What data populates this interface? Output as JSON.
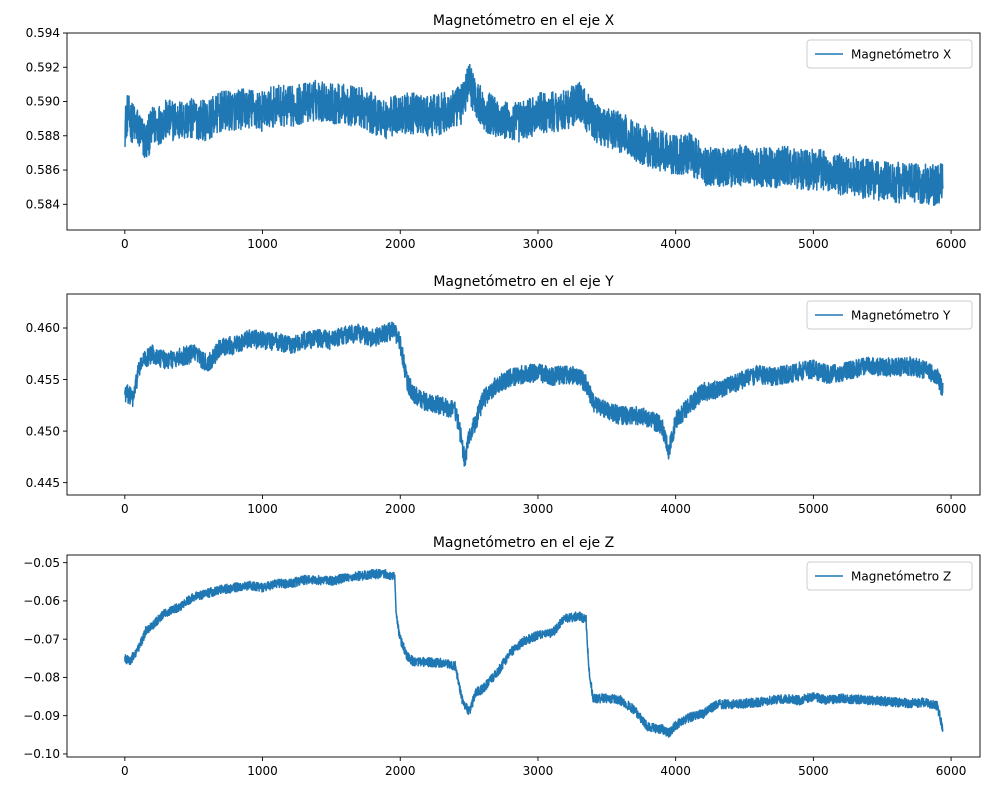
{
  "chart_data": [
    {
      "type": "line",
      "title": "Magnetómetro en el eje X",
      "xlabel": "",
      "ylabel": "",
      "xlim": [
        -420,
        6210
      ],
      "ylim": [
        0.5825,
        0.594
      ],
      "xticks": [
        0,
        1000,
        2000,
        3000,
        4000,
        5000,
        6000
      ],
      "xtick_labels": [
        "0",
        "1000",
        "2000",
        "3000",
        "4000",
        "5000",
        "6000"
      ],
      "yticks": [
        0.584,
        0.586,
        0.588,
        0.59,
        0.592,
        0.594
      ],
      "ytick_labels": [
        "0.584",
        "0.586",
        "0.588",
        "0.590",
        "0.592",
        "0.594"
      ],
      "legend_position": "upper right",
      "grid": false,
      "series": [
        {
          "name": "Magnetómetro X",
          "color": "#1f77b4",
          "noise": 0.0012,
          "x": [
            0,
            20,
            50,
            100,
            150,
            200,
            300,
            400,
            500,
            600,
            700,
            800,
            900,
            1000,
            1100,
            1200,
            1300,
            1400,
            1500,
            1600,
            1700,
            1800,
            1900,
            2000,
            2100,
            2200,
            2300,
            2400,
            2450,
            2500,
            2550,
            2600,
            2700,
            2800,
            2900,
            3000,
            3100,
            3200,
            3300,
            3400,
            3500,
            3600,
            3700,
            3800,
            3900,
            4000,
            4100,
            4200,
            4300,
            4400,
            4500,
            4600,
            4700,
            4800,
            4900,
            5000,
            5100,
            5200,
            5300,
            5400,
            5500,
            5600,
            5700,
            5800,
            5900,
            5940
          ],
          "values": [
            0.5885,
            0.5893,
            0.5888,
            0.5884,
            0.5876,
            0.5885,
            0.5889,
            0.5889,
            0.589,
            0.5889,
            0.5894,
            0.5895,
            0.5896,
            0.5894,
            0.5898,
            0.5897,
            0.5899,
            0.5901,
            0.5899,
            0.5898,
            0.5897,
            0.5893,
            0.589,
            0.5893,
            0.5893,
            0.5891,
            0.5893,
            0.5895,
            0.5899,
            0.5912,
            0.5902,
            0.5895,
            0.5891,
            0.5887,
            0.5889,
            0.5893,
            0.5894,
            0.5895,
            0.59,
            0.5889,
            0.5885,
            0.5882,
            0.5877,
            0.5874,
            0.5871,
            0.5869,
            0.587,
            0.5863,
            0.5862,
            0.5862,
            0.5863,
            0.5862,
            0.5861,
            0.5862,
            0.5861,
            0.586,
            0.586,
            0.5857,
            0.5856,
            0.5855,
            0.5854,
            0.5853,
            0.5852,
            0.5852,
            0.5851,
            0.5854
          ]
        }
      ]
    },
    {
      "type": "line",
      "title": "Magnetómetro en el eje Y",
      "xlabel": "",
      "ylabel": "",
      "xlim": [
        -420,
        6210
      ],
      "ylim": [
        0.4438,
        0.4633
      ],
      "xticks": [
        0,
        1000,
        2000,
        3000,
        4000,
        5000,
        6000
      ],
      "xtick_labels": [
        "0",
        "1000",
        "2000",
        "3000",
        "4000",
        "5000",
        "6000"
      ],
      "yticks": [
        0.445,
        0.45,
        0.455,
        0.46
      ],
      "ytick_labels": [
        "0.445",
        "0.450",
        "0.455",
        "0.460"
      ],
      "legend_position": "upper right",
      "grid": false,
      "series": [
        {
          "name": "Magnetómetro Y",
          "color": "#1f77b4",
          "noise": 0.0009,
          "x": [
            0,
            30,
            60,
            100,
            150,
            200,
            300,
            400,
            500,
            600,
            700,
            800,
            900,
            1000,
            1100,
            1200,
            1300,
            1400,
            1500,
            1600,
            1700,
            1800,
            1900,
            1950,
            2000,
            2050,
            2100,
            2200,
            2300,
            2400,
            2440,
            2470,
            2500,
            2550,
            2600,
            2700,
            2800,
            2900,
            3000,
            3100,
            3200,
            3300,
            3350,
            3400,
            3500,
            3600,
            3700,
            3800,
            3900,
            3950,
            4000,
            4100,
            4200,
            4300,
            4400,
            4500,
            4600,
            4700,
            4800,
            4900,
            5000,
            5100,
            5200,
            5300,
            5400,
            5500,
            5600,
            5700,
            5800,
            5900,
            5940
          ],
          "values": [
            0.4537,
            0.4535,
            0.4531,
            0.456,
            0.457,
            0.4575,
            0.4568,
            0.4572,
            0.4575,
            0.4565,
            0.4582,
            0.4583,
            0.459,
            0.4588,
            0.4587,
            0.4583,
            0.4588,
            0.459,
            0.4588,
            0.4593,
            0.4595,
            0.459,
            0.4595,
            0.4598,
            0.4585,
            0.4548,
            0.4535,
            0.4527,
            0.4525,
            0.452,
            0.4495,
            0.447,
            0.4495,
            0.451,
            0.453,
            0.4545,
            0.4552,
            0.4555,
            0.4557,
            0.4553,
            0.4555,
            0.4553,
            0.4545,
            0.4528,
            0.452,
            0.4515,
            0.4515,
            0.4513,
            0.4505,
            0.448,
            0.451,
            0.4525,
            0.4538,
            0.454,
            0.4545,
            0.455,
            0.4555,
            0.4553,
            0.4555,
            0.4558,
            0.456,
            0.4555,
            0.4557,
            0.456,
            0.4563,
            0.4562,
            0.4562,
            0.4563,
            0.456,
            0.4553,
            0.454
          ]
        }
      ]
    },
    {
      "type": "line",
      "title": "Magnetómetro en el eje Z",
      "xlabel": "",
      "ylabel": "",
      "xlim": [
        -420,
        6210
      ],
      "ylim": [
        -0.1008,
        -0.048
      ],
      "xticks": [
        0,
        1000,
        2000,
        3000,
        4000,
        5000,
        6000
      ],
      "xtick_labels": [
        "0",
        "1000",
        "2000",
        "3000",
        "4000",
        "5000",
        "6000"
      ],
      "yticks": [
        -0.1,
        -0.09,
        -0.08,
        -0.07,
        -0.06,
        -0.05
      ],
      "ytick_labels": [
        "−0.10",
        "−0.09",
        "−0.08",
        "−0.07",
        "−0.06",
        "−0.05"
      ],
      "legend_position": "upper right",
      "grid": false,
      "series": [
        {
          "name": "Magnetómetro Z",
          "color": "#1f77b4",
          "noise": 0.0012,
          "x": [
            0,
            40,
            100,
            150,
            200,
            300,
            400,
            500,
            600,
            700,
            800,
            900,
            1000,
            1100,
            1200,
            1300,
            1400,
            1500,
            1600,
            1700,
            1800,
            1900,
            1960,
            1970,
            2000,
            2050,
            2100,
            2200,
            2300,
            2400,
            2450,
            2500,
            2550,
            2600,
            2700,
            2800,
            2900,
            3000,
            3100,
            3200,
            3300,
            3350,
            3370,
            3400,
            3500,
            3600,
            3700,
            3800,
            3900,
            3950,
            4000,
            4100,
            4200,
            4300,
            4400,
            4500,
            4600,
            4700,
            4800,
            4900,
            5000,
            5100,
            5200,
            5300,
            5400,
            5500,
            5600,
            5700,
            5800,
            5900,
            5940
          ],
          "values": [
            -0.0752,
            -0.0755,
            -0.0725,
            -0.068,
            -0.0665,
            -0.063,
            -0.0615,
            -0.059,
            -0.058,
            -0.057,
            -0.0565,
            -0.056,
            -0.0565,
            -0.0555,
            -0.0555,
            -0.0545,
            -0.0545,
            -0.0548,
            -0.054,
            -0.0535,
            -0.053,
            -0.053,
            -0.0535,
            -0.064,
            -0.07,
            -0.0745,
            -0.076,
            -0.076,
            -0.0762,
            -0.077,
            -0.086,
            -0.089,
            -0.084,
            -0.083,
            -0.079,
            -0.0735,
            -0.0705,
            -0.069,
            -0.0685,
            -0.0645,
            -0.064,
            -0.065,
            -0.078,
            -0.0855,
            -0.0855,
            -0.086,
            -0.0885,
            -0.093,
            -0.0935,
            -0.0945,
            -0.0925,
            -0.0905,
            -0.0895,
            -0.087,
            -0.087,
            -0.0868,
            -0.0865,
            -0.086,
            -0.0855,
            -0.086,
            -0.085,
            -0.086,
            -0.0855,
            -0.0857,
            -0.086,
            -0.0862,
            -0.0865,
            -0.0868,
            -0.0865,
            -0.0875,
            -0.0935
          ]
        }
      ]
    }
  ]
}
